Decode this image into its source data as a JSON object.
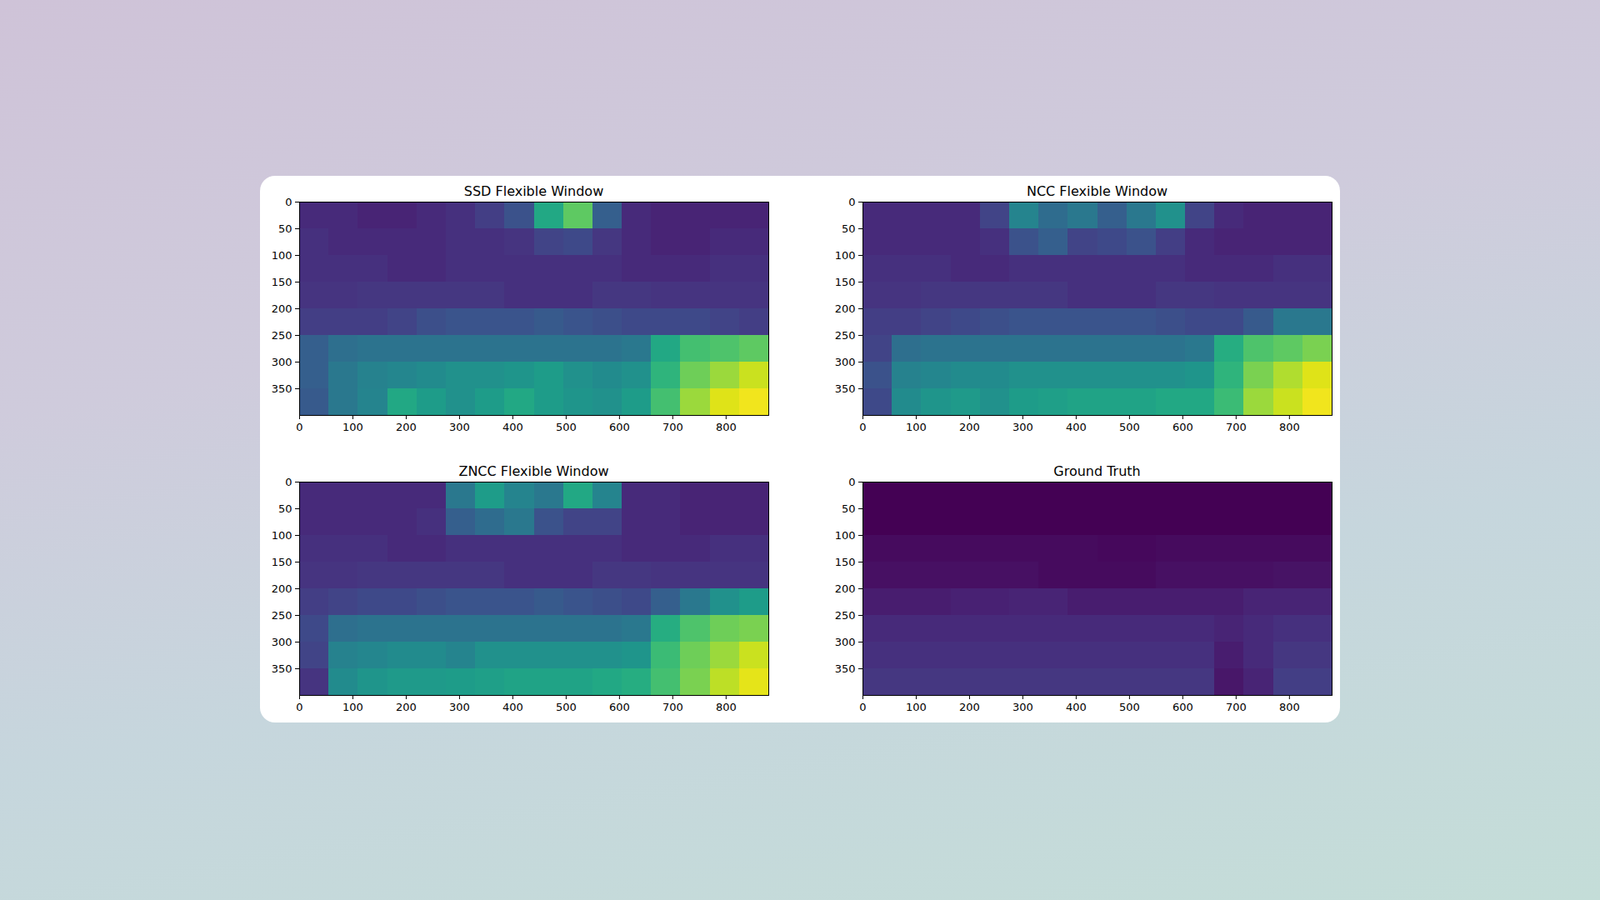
{
  "chart_data": [
    {
      "type": "heatmap",
      "title": "SSD Flexible Window",
      "color": "viridis",
      "zlim": [
        0,
        100
      ],
      "xlim": [
        0,
        880
      ],
      "ylim": [
        0,
        400
      ],
      "xticks": [
        0,
        100,
        200,
        300,
        400,
        500,
        600,
        700,
        800
      ],
      "yticks": [
        0,
        50,
        100,
        150,
        200,
        250,
        300,
        350
      ],
      "cells": [
        [
          12,
          12,
          10,
          10,
          12,
          14,
          18,
          25,
          60,
          75,
          30,
          12,
          10,
          10,
          10,
          10
        ],
        [
          14,
          12,
          12,
          12,
          12,
          14,
          14,
          15,
          20,
          22,
          16,
          12,
          10,
          10,
          12,
          12
        ],
        [
          14,
          14,
          14,
          12,
          12,
          14,
          14,
          14,
          14,
          14,
          14,
          12,
          12,
          12,
          14,
          14
        ],
        [
          15,
          15,
          16,
          16,
          16,
          16,
          16,
          14,
          14,
          14,
          16,
          16,
          15,
          15,
          15,
          15
        ],
        [
          18,
          18,
          18,
          20,
          24,
          26,
          26,
          26,
          28,
          26,
          24,
          22,
          22,
          22,
          20,
          18
        ],
        [
          30,
          36,
          38,
          38,
          38,
          38,
          38,
          38,
          38,
          38,
          38,
          40,
          60,
          70,
          72,
          75
        ],
        [
          30,
          40,
          44,
          46,
          48,
          50,
          50,
          52,
          55,
          50,
          48,
          50,
          65,
          78,
          85,
          92
        ],
        [
          28,
          40,
          45,
          60,
          55,
          50,
          55,
          60,
          55,
          52,
          50,
          55,
          70,
          85,
          95,
          98
        ]
      ]
    },
    {
      "type": "heatmap",
      "title": "NCC Flexible Window",
      "color": "viridis",
      "zlim": [
        0,
        100
      ],
      "xlim": [
        0,
        880
      ],
      "ylim": [
        0,
        400
      ],
      "xticks": [
        0,
        100,
        200,
        300,
        400,
        500,
        600,
        700,
        800
      ],
      "yticks": [
        0,
        50,
        100,
        150,
        200,
        250,
        300,
        350
      ],
      "cells": [
        [
          12,
          12,
          12,
          12,
          20,
          45,
          35,
          40,
          30,
          40,
          50,
          20,
          12,
          10,
          10,
          10
        ],
        [
          12,
          12,
          12,
          12,
          14,
          25,
          30,
          20,
          22,
          25,
          18,
          12,
          10,
          10,
          10,
          10
        ],
        [
          14,
          14,
          14,
          12,
          12,
          14,
          14,
          14,
          14,
          14,
          14,
          12,
          12,
          12,
          14,
          14
        ],
        [
          15,
          15,
          16,
          16,
          16,
          16,
          16,
          14,
          14,
          14,
          16,
          16,
          15,
          15,
          15,
          15
        ],
        [
          18,
          18,
          20,
          22,
          24,
          26,
          26,
          26,
          26,
          26,
          24,
          22,
          22,
          28,
          40,
          40
        ],
        [
          20,
          36,
          38,
          38,
          38,
          38,
          38,
          38,
          38,
          38,
          38,
          40,
          62,
          72,
          75,
          80
        ],
        [
          25,
          44,
          46,
          48,
          48,
          50,
          50,
          50,
          50,
          50,
          50,
          52,
          65,
          80,
          88,
          95
        ],
        [
          22,
          48,
          52,
          54,
          50,
          55,
          56,
          58,
          58,
          58,
          60,
          60,
          68,
          85,
          92,
          98
        ]
      ]
    },
    {
      "type": "heatmap",
      "title": "ZNCC Flexible Window",
      "color": "viridis",
      "zlim": [
        0,
        100
      ],
      "xlim": [
        0,
        880
      ],
      "ylim": [
        0,
        400
      ],
      "xticks": [
        0,
        100,
        200,
        300,
        400,
        500,
        600,
        700,
        800
      ],
      "yticks": [
        0,
        50,
        100,
        150,
        200,
        250,
        300,
        350
      ],
      "cells": [
        [
          12,
          12,
          12,
          12,
          12,
          40,
          55,
          45,
          40,
          60,
          45,
          12,
          12,
          10,
          10,
          10
        ],
        [
          12,
          12,
          12,
          12,
          14,
          30,
          35,
          40,
          25,
          20,
          20,
          12,
          12,
          10,
          10,
          10
        ],
        [
          14,
          14,
          14,
          12,
          12,
          14,
          14,
          14,
          14,
          14,
          14,
          12,
          12,
          12,
          14,
          14
        ],
        [
          15,
          15,
          16,
          16,
          16,
          16,
          16,
          14,
          14,
          14,
          16,
          16,
          15,
          15,
          15,
          15
        ],
        [
          18,
          20,
          22,
          22,
          24,
          26,
          26,
          26,
          28,
          26,
          24,
          22,
          30,
          40,
          50,
          55
        ],
        [
          22,
          36,
          38,
          38,
          38,
          38,
          38,
          38,
          38,
          38,
          38,
          40,
          62,
          72,
          78,
          80
        ],
        [
          20,
          44,
          46,
          48,
          48,
          45,
          50,
          50,
          50,
          50,
          50,
          52,
          68,
          78,
          85,
          92
        ],
        [
          15,
          48,
          52,
          54,
          54,
          55,
          56,
          58,
          58,
          58,
          60,
          62,
          70,
          80,
          90,
          96
        ]
      ]
    },
    {
      "type": "heatmap",
      "title": "Ground Truth",
      "color": "viridis",
      "zlim": [
        0,
        100
      ],
      "xlim": [
        0,
        880
      ],
      "ylim": [
        0,
        400
      ],
      "xticks": [
        0,
        100,
        200,
        300,
        400,
        500,
        600,
        700,
        800
      ],
      "yticks": [
        0,
        50,
        100,
        150,
        200,
        250,
        300,
        350
      ],
      "cells": [
        [
          0,
          0,
          0,
          0,
          0,
          0,
          0,
          0,
          0,
          0,
          0,
          0,
          0,
          0,
          0,
          0
        ],
        [
          0,
          0,
          0,
          0,
          0,
          0,
          0,
          0,
          0,
          0,
          0,
          0,
          0,
          0,
          0,
          0
        ],
        [
          3,
          3,
          3,
          3,
          3,
          3,
          3,
          3,
          2,
          2,
          3,
          3,
          3,
          3,
          3,
          3
        ],
        [
          4,
          4,
          4,
          4,
          4,
          4,
          3,
          3,
          3,
          3,
          4,
          4,
          4,
          4,
          5,
          5
        ],
        [
          8,
          8,
          8,
          9,
          9,
          10,
          10,
          8,
          8,
          8,
          8,
          8,
          8,
          10,
          10,
          10
        ],
        [
          12,
          12,
          12,
          12,
          12,
          12,
          12,
          12,
          12,
          12,
          12,
          12,
          10,
          12,
          14,
          14
        ],
        [
          14,
          14,
          14,
          14,
          14,
          14,
          14,
          14,
          14,
          14,
          14,
          14,
          8,
          12,
          16,
          16
        ],
        [
          16,
          16,
          16,
          16,
          16,
          16,
          16,
          16,
          16,
          16,
          16,
          16,
          6,
          10,
          18,
          18
        ]
      ]
    }
  ]
}
